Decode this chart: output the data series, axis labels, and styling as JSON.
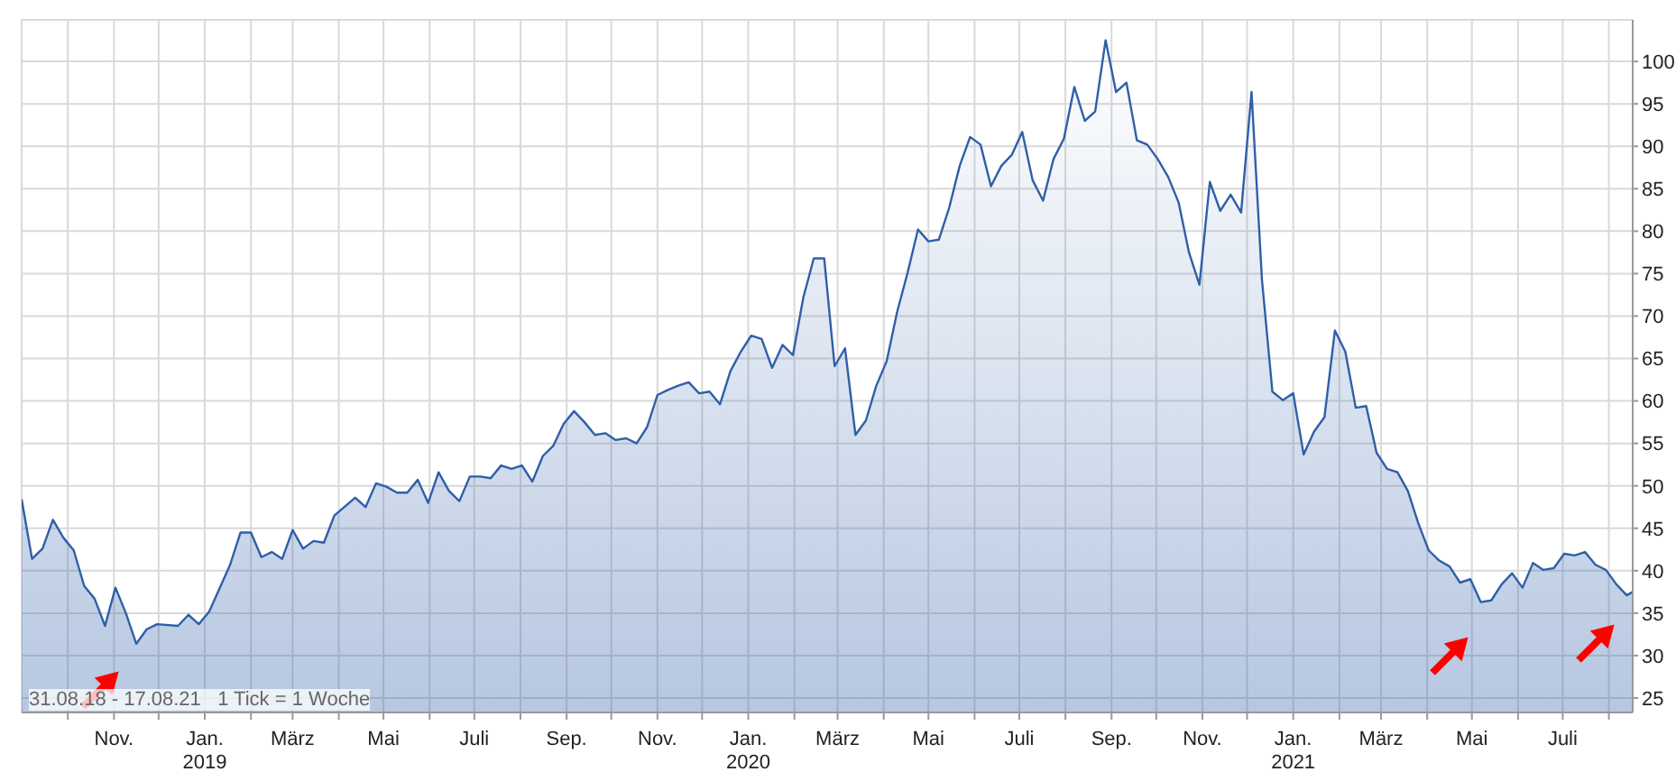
{
  "chart_data": {
    "type": "area",
    "annotations": [
      "31.08.18 - 17.08.21   1 Tick = 1 Woche"
    ],
    "grid": true,
    "legend": false,
    "xlim": [
      "2018-08-31",
      "2021-08-17"
    ],
    "ylim": [
      23.3,
      104.9
    ],
    "yticks": [
      25,
      30,
      35,
      40,
      45,
      50,
      55,
      60,
      65,
      70,
      75,
      80,
      85,
      90,
      95,
      100
    ],
    "xticks": [
      {
        "value": "2018-10-01",
        "label": null
      },
      {
        "value": "2018-11-01",
        "label": "Nov."
      },
      {
        "value": "2018-12-01",
        "label": null
      },
      {
        "value": "2019-01-01",
        "label": "Jan.\n2019"
      },
      {
        "value": "2019-02-01",
        "label": null
      },
      {
        "value": "2019-03-01",
        "label": "März"
      },
      {
        "value": "2019-04-01",
        "label": null
      },
      {
        "value": "2019-05-01",
        "label": "Mai"
      },
      {
        "value": "2019-06-01",
        "label": null
      },
      {
        "value": "2019-07-01",
        "label": "Juli"
      },
      {
        "value": "2019-08-01",
        "label": null
      },
      {
        "value": "2019-09-01",
        "label": "Sep."
      },
      {
        "value": "2019-10-01",
        "label": null
      },
      {
        "value": "2019-11-01",
        "label": "Nov."
      },
      {
        "value": "2019-12-01",
        "label": null
      },
      {
        "value": "2020-01-01",
        "label": "Jan.\n2020"
      },
      {
        "value": "2020-02-01",
        "label": null
      },
      {
        "value": "2020-03-01",
        "label": "März"
      },
      {
        "value": "2020-04-01",
        "label": null
      },
      {
        "value": "2020-05-01",
        "label": "Mai"
      },
      {
        "value": "2020-06-01",
        "label": null
      },
      {
        "value": "2020-07-01",
        "label": "Juli"
      },
      {
        "value": "2020-08-01",
        "label": null
      },
      {
        "value": "2020-09-01",
        "label": "Sep."
      },
      {
        "value": "2020-10-01",
        "label": null
      },
      {
        "value": "2020-11-01",
        "label": "Nov."
      },
      {
        "value": "2020-12-01",
        "label": null
      },
      {
        "value": "2021-01-01",
        "label": "Jan.\n2021"
      },
      {
        "value": "2021-02-01",
        "label": null
      },
      {
        "value": "2021-03-01",
        "label": "März"
      },
      {
        "value": "2021-04-01",
        "label": null
      },
      {
        "value": "2021-05-01",
        "label": "Mai"
      },
      {
        "value": "2021-06-01",
        "label": null
      },
      {
        "value": "2021-07-01",
        "label": "Juli"
      },
      {
        "value": "2021-08-01",
        "label": null
      }
    ],
    "series": [
      {
        "color": "#2f5fa8",
        "x": [
          "2018-08-31",
          "2018-09-07",
          "2018-09-14",
          "2018-09-21",
          "2018-09-28",
          "2018-10-05",
          "2018-10-12",
          "2018-10-19",
          "2018-10-26",
          "2018-11-02",
          "2018-11-09",
          "2018-11-16",
          "2018-11-23",
          "2018-11-30",
          "2018-12-14",
          "2018-12-21",
          "2018-12-28",
          "2019-01-04",
          "2019-01-18",
          "2019-01-25",
          "2019-02-01",
          "2019-02-08",
          "2019-02-15",
          "2019-02-22",
          "2019-03-01",
          "2019-03-08",
          "2019-03-15",
          "2019-03-22",
          "2019-03-29",
          "2019-04-12",
          "2019-04-19",
          "2019-04-26",
          "2019-05-03",
          "2019-05-10",
          "2019-05-17",
          "2019-05-24",
          "2019-05-31",
          "2019-06-07",
          "2019-06-14",
          "2019-06-21",
          "2019-06-28",
          "2019-07-05",
          "2019-07-12",
          "2019-07-19",
          "2019-07-26",
          "2019-08-02",
          "2019-08-09",
          "2019-08-16",
          "2019-08-23",
          "2019-08-30",
          "2019-09-06",
          "2019-09-13",
          "2019-09-20",
          "2019-09-27",
          "2019-10-04",
          "2019-10-11",
          "2019-10-18",
          "2019-10-25",
          "2019-11-01",
          "2019-11-08",
          "2019-11-15",
          "2019-11-22",
          "2019-11-29",
          "2019-12-06",
          "2019-12-13",
          "2019-12-20",
          "2019-12-27",
          "2020-01-03",
          "2020-01-10",
          "2020-01-17",
          "2020-01-24",
          "2020-01-31",
          "2020-02-07",
          "2020-02-14",
          "2020-02-21",
          "2020-02-28",
          "2020-03-06",
          "2020-03-13",
          "2020-03-20",
          "2020-03-27",
          "2020-04-03",
          "2020-04-10",
          "2020-04-17",
          "2020-04-24",
          "2020-05-01",
          "2020-05-08",
          "2020-05-15",
          "2020-05-22",
          "2020-05-29",
          "2020-06-05",
          "2020-06-12",
          "2020-06-19",
          "2020-06-26",
          "2020-07-03",
          "2020-07-10",
          "2020-07-17",
          "2020-07-24",
          "2020-07-31",
          "2020-08-07",
          "2020-08-14",
          "2020-08-21",
          "2020-08-28",
          "2020-09-04",
          "2020-09-11",
          "2020-09-18",
          "2020-09-25",
          "2020-10-02",
          "2020-10-09",
          "2020-10-16",
          "2020-10-23",
          "2020-10-30",
          "2020-11-06",
          "2020-11-13",
          "2020-11-20",
          "2020-11-27",
          "2020-12-04",
          "2020-12-11",
          "2020-12-18",
          "2020-12-25",
          "2021-01-01",
          "2021-01-08",
          "2021-01-15",
          "2021-01-22",
          "2021-01-29",
          "2021-02-05",
          "2021-02-12",
          "2021-02-19",
          "2021-02-26",
          "2021-03-05",
          "2021-03-12",
          "2021-03-19",
          "2021-03-26",
          "2021-04-02",
          "2021-04-09",
          "2021-04-16",
          "2021-04-23",
          "2021-04-30",
          "2021-05-07",
          "2021-05-14",
          "2021-05-21",
          "2021-05-28",
          "2021-06-04",
          "2021-06-11",
          "2021-06-18",
          "2021-06-25",
          "2021-07-02",
          "2021-07-09",
          "2021-07-16",
          "2021-07-23",
          "2021-07-30",
          "2021-08-06",
          "2021-08-13",
          "2021-08-17"
        ],
        "values": [
          48.4,
          41.4,
          42.6,
          46,
          43.9,
          42.4,
          38.2,
          36.7,
          33.5,
          38,
          35,
          31.4,
          33.1,
          33.7,
          33.5,
          34.8,
          33.7,
          35.2,
          40.7,
          44.5,
          44.5,
          41.6,
          42.2,
          41.4,
          44.8,
          42.6,
          43.5,
          43.3,
          46.5,
          48.6,
          47.5,
          50.3,
          49.9,
          49.2,
          49.2,
          50.7,
          48,
          51.6,
          49.4,
          48.2,
          51.1,
          51.1,
          50.9,
          52.4,
          52,
          52.4,
          50.5,
          53.5,
          54.7,
          57.3,
          58.8,
          57.5,
          56,
          56.2,
          55.4,
          55.6,
          55,
          56.9,
          60.7,
          61.3,
          61.8,
          62.2,
          60.9,
          61.1,
          59.6,
          63.5,
          65.8,
          67.7,
          67.3,
          63.9,
          66.6,
          65.4,
          72.2,
          76.8,
          76.8,
          64.1,
          66.2,
          56,
          57.7,
          61.8,
          64.7,
          70.5,
          75.1,
          80.2,
          78.8,
          79,
          82.8,
          87.7,
          91.1,
          90.2,
          85.3,
          87.7,
          89,
          91.7,
          86,
          83.6,
          88.5,
          90.9,
          97,
          93,
          94.1,
          102.5,
          96.4,
          97.5,
          90.7,
          90.2,
          88.5,
          86.4,
          83.4,
          77.5,
          73.7,
          85.8,
          82.4,
          84.3,
          82.2,
          96.4,
          74.3,
          61.1,
          60.1,
          60.9,
          53.7,
          56.4,
          58.1,
          68.3,
          65.8,
          59.2,
          59.4,
          53.9,
          52,
          51.6,
          49.4,
          45.6,
          42.4,
          41.2,
          40.5,
          38.6,
          39,
          36.3,
          36.5,
          38.4,
          39.7,
          38,
          40.9,
          40.1,
          40.3,
          42,
          41.8,
          42.2,
          40.7,
          40.1,
          38.4,
          37.1,
          37.5
        ]
      }
    ]
  }
}
